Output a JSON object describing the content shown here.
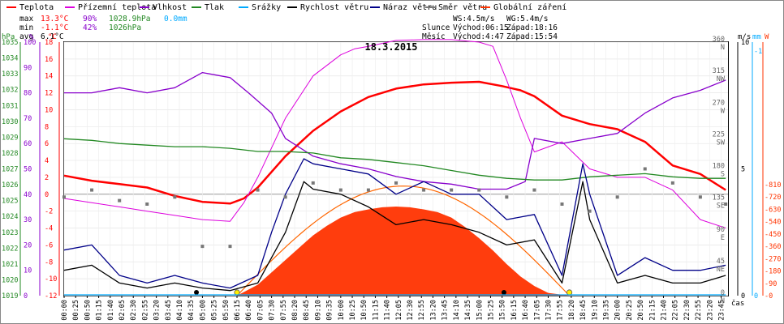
{
  "chart_data": {
    "type": "line",
    "title": "18.3.2015",
    "legend": [
      "Teplota",
      "Přízemní teplota",
      "Vlhkost",
      "Tlak",
      "Srážky",
      "Rychlost větru",
      "Náraz větru",
      "Směr větru",
      "Globální záření"
    ],
    "colors": {
      "Teplota": "#ff0000",
      "Přízemní teplota": "#dd00dd",
      "Vlhkost": "#8800cc",
      "Tlak": "#228822",
      "Srážky": "#00aaff",
      "Rychlost větru": "#000000",
      "Náraz větru": "#000088",
      "Směr větru": "#777777",
      "Globální záření": "#ff3300"
    },
    "stats": {
      "max": {
        "label": "max",
        "temp": "13.3°C",
        "hum": "90%",
        "press": "1028.9hPa",
        "rain": "0.0mm"
      },
      "min": {
        "label": "min",
        "temp": "-1.1°C",
        "hum": "42%",
        "press": "1026hPa"
      },
      "avg": {
        "label": "avg",
        "temp": "6.1°C"
      }
    },
    "info": {
      "ws": "WS:4.5m/s",
      "wg": "WG:5.4m/s",
      "sun_label": "Slunce",
      "sunrise": "Východ:06:15",
      "sunset": "Západ:18:16",
      "moon_label": "Měsíc",
      "moonrise": "Východ:4:47",
      "moonset": "Západ:15:54"
    },
    "axes": {
      "hpa": {
        "label": "hPa",
        "range": [
          1019,
          1035
        ],
        "ticks": [
          "1035",
          "1034",
          "1033",
          "1032",
          "1031",
          "1030",
          "1029",
          "1028",
          "1027",
          "1026",
          "1025",
          "1024",
          "1023",
          "1022",
          "1021",
          "1020",
          "1019"
        ]
      },
      "pct": {
        "label": "%",
        "range": [
          0,
          100
        ],
        "ticks": [
          "100",
          "90",
          "80",
          "70",
          "60",
          "50",
          "40",
          "30",
          "20",
          "10",
          "0"
        ]
      },
      "temp": {
        "label": "°C",
        "range": [
          -12,
          18
        ],
        "ticks": [
          "18",
          "16",
          "14",
          "12",
          "10",
          "8",
          "6",
          "4",
          "2",
          "0",
          "-2",
          "-4",
          "-6",
          "-8",
          "-10",
          "-12"
        ]
      },
      "wind": {
        "label": "m/s",
        "range": [
          0,
          10
        ],
        "ticks": [
          "10",
          "5",
          "0"
        ]
      },
      "mm": {
        "label": "mm",
        "ticks": [
          "1",
          "0"
        ]
      },
      "dir": {
        "range": [
          0,
          360
        ],
        "ticks": [
          "360",
          "315",
          "270",
          "225",
          "180",
          "135",
          "90",
          "45",
          "0"
        ],
        "names": [
          "N",
          "NW",
          "W",
          "SW",
          "S",
          "SE",
          "E",
          "NE",
          "N"
        ]
      },
      "rad": {
        "label": "W",
        "range": [
          0,
          810
        ],
        "ticks": [
          "810",
          "720",
          "630",
          "540",
          "450",
          "360",
          "270",
          "180",
          "90",
          "0"
        ]
      },
      "x_label": "čas",
      "x_ticks": [
        "00:00",
        "00:25",
        "00:50",
        "01:15",
        "01:40",
        "02:05",
        "02:30",
        "02:55",
        "03:20",
        "03:45",
        "04:10",
        "04:35",
        "05:00",
        "05:25",
        "05:50",
        "06:15",
        "06:40",
        "07:05",
        "07:30",
        "07:55",
        "08:20",
        "08:45",
        "09:10",
        "09:35",
        "10:00",
        "10:25",
        "10:50",
        "11:15",
        "11:40",
        "12:05",
        "12:30",
        "12:55",
        "13:20",
        "13:45",
        "14:10",
        "14:35",
        "15:00",
        "15:25",
        "15:50",
        "16:15",
        "16:40",
        "17:05",
        "17:30",
        "17:55",
        "18:20",
        "18:45",
        "19:10",
        "19:35",
        "20:00",
        "20:25",
        "20:50",
        "21:15",
        "21:40",
        "22:05",
        "22:30",
        "22:55",
        "23:20",
        "23:45"
      ]
    },
    "series": [
      {
        "name": "Teplota",
        "unit": "°C",
        "x": [
          "00:00",
          "01:00",
          "02:00",
          "03:00",
          "04:00",
          "05:00",
          "06:00",
          "06:30",
          "07:00",
          "08:00",
          "09:00",
          "10:00",
          "11:00",
          "12:00",
          "13:00",
          "14:00",
          "15:00",
          "15:50",
          "16:30",
          "17:00",
          "18:00",
          "19:00",
          "20:00",
          "21:00",
          "22:00",
          "23:00",
          "23:55"
        ],
        "y": [
          2.2,
          1.6,
          1.2,
          0.8,
          -0.2,
          -0.9,
          -1.1,
          -0.5,
          0.8,
          4.5,
          7.5,
          9.8,
          11.5,
          12.5,
          13.0,
          13.2,
          13.3,
          12.8,
          12.3,
          11.6,
          9.3,
          8.3,
          7.7,
          6.2,
          3.4,
          2.4,
          0.5
        ]
      },
      {
        "name": "Přízemní teplota",
        "unit": "°C",
        "x": [
          "00:00",
          "01:00",
          "02:00",
          "03:00",
          "04:00",
          "05:00",
          "06:00",
          "06:30",
          "07:00",
          "08:00",
          "09:00",
          "10:00",
          "10:30",
          "11:00",
          "12:00",
          "13:00",
          "14:00",
          "15:00",
          "15:30",
          "16:00",
          "16:30",
          "17:00",
          "18:00",
          "19:00",
          "20:00",
          "21:00",
          "22:00",
          "23:00",
          "23:55"
        ],
        "y": [
          -0.5,
          -1.0,
          -1.5,
          -2.0,
          -2.5,
          -3.0,
          -3.2,
          -1.0,
          2.0,
          9.0,
          14.0,
          16.5,
          17.2,
          17.5,
          18.2,
          18.3,
          18.3,
          18.0,
          17.5,
          13.5,
          9.0,
          5.0,
          6.2,
          3.0,
          2.0,
          2.0,
          0.5,
          -3.0,
          -4.0
        ]
      },
      {
        "name": "Vlhkost",
        "unit": "%",
        "x": [
          "00:00",
          "01:00",
          "02:00",
          "03:00",
          "04:00",
          "05:00",
          "06:00",
          "06:40",
          "07:30",
          "08:00",
          "09:00",
          "10:00",
          "11:00",
          "12:00",
          "13:00",
          "14:00",
          "15:00",
          "16:00",
          "16:40",
          "17:00",
          "18:00",
          "19:00",
          "20:00",
          "21:00",
          "22:00",
          "23:00",
          "23:55"
        ],
        "y": [
          80,
          80,
          82,
          80,
          82,
          88,
          86,
          80,
          72,
          62,
          55,
          52,
          50,
          47,
          45,
          44,
          42,
          42,
          45,
          62,
          60,
          62,
          64,
          72,
          78,
          81,
          85
        ]
      },
      {
        "name": "Tlak",
        "unit": "hPa",
        "x": [
          "00:00",
          "01:00",
          "02:00",
          "03:00",
          "04:00",
          "05:00",
          "06:00",
          "07:00",
          "08:00",
          "09:00",
          "10:00",
          "11:00",
          "12:00",
          "13:00",
          "14:00",
          "15:00",
          "16:00",
          "17:00",
          "18:00",
          "19:00",
          "20:00",
          "21:00",
          "22:00",
          "23:00",
          "23:55"
        ],
        "y": [
          1028.9,
          1028.8,
          1028.6,
          1028.5,
          1028.4,
          1028.4,
          1028.3,
          1028.1,
          1028.1,
          1028.0,
          1027.7,
          1027.6,
          1027.4,
          1027.2,
          1026.9,
          1026.6,
          1026.4,
          1026.3,
          1026.3,
          1026.5,
          1026.6,
          1026.7,
          1026.5,
          1026.4,
          1026.4
        ]
      },
      {
        "name": "Srážky",
        "unit": "mm",
        "x": [
          "00:00",
          "23:55"
        ],
        "y": [
          0,
          0
        ]
      },
      {
        "name": "Rychlost větru",
        "unit": "m/s",
        "x": [
          "00:00",
          "01:00",
          "02:00",
          "03:00",
          "04:00",
          "05:00",
          "06:00",
          "07:00",
          "07:30",
          "08:00",
          "08:40",
          "09:00",
          "10:00",
          "11:00",
          "12:00",
          "13:00",
          "14:00",
          "15:00",
          "16:00",
          "17:00",
          "18:00",
          "18:45",
          "19:00",
          "20:00",
          "21:00",
          "22:00",
          "23:00",
          "23:55"
        ],
        "y": [
          1.0,
          1.2,
          0.5,
          0.3,
          0.5,
          0.3,
          0.2,
          0.5,
          1.5,
          2.5,
          4.5,
          4.2,
          4.0,
          3.5,
          2.8,
          3.0,
          2.8,
          2.5,
          2.0,
          2.2,
          0.5,
          4.5,
          3.0,
          0.5,
          0.8,
          0.5,
          0.5,
          0.8
        ]
      },
      {
        "name": "Náraz větru",
        "unit": "m/s",
        "x": [
          "00:00",
          "01:00",
          "02:00",
          "03:00",
          "04:00",
          "05:00",
          "06:00",
          "07:00",
          "07:30",
          "08:00",
          "08:40",
          "09:00",
          "10:00",
          "11:00",
          "12:00",
          "13:00",
          "14:00",
          "15:00",
          "16:00",
          "17:00",
          "18:00",
          "18:45",
          "19:00",
          "20:00",
          "21:00",
          "22:00",
          "23:00",
          "23:55"
        ],
        "y": [
          1.8,
          2.0,
          0.8,
          0.5,
          0.8,
          0.5,
          0.3,
          0.8,
          2.5,
          4.0,
          5.4,
          5.2,
          5.0,
          4.8,
          4.0,
          4.5,
          4.0,
          4.0,
          3.0,
          3.2,
          0.8,
          5.2,
          4.0,
          0.8,
          1.5,
          1.0,
          1.0,
          1.2
        ]
      },
      {
        "name": "Směr větru",
        "unit": "°",
        "x": [
          "00:00",
          "01:00",
          "02:00",
          "03:00",
          "04:00",
          "05:00",
          "06:00",
          "07:00",
          "08:00",
          "09:00",
          "10:00",
          "11:00",
          "12:00",
          "13:00",
          "14:00",
          "15:00",
          "16:00",
          "17:00",
          "18:00",
          "19:00",
          "20:00",
          "21:00",
          "22:00",
          "23:00",
          "23:55"
        ],
        "y": [
          140,
          150,
          135,
          130,
          140,
          70,
          70,
          150,
          140,
          160,
          150,
          150,
          160,
          150,
          150,
          150,
          140,
          150,
          130,
          120,
          140,
          180,
          160,
          140,
          130
        ]
      },
      {
        "name": "Globální záření",
        "unit": "W",
        "x": [
          "06:15",
          "07:00",
          "07:30",
          "08:00",
          "08:30",
          "09:00",
          "09:30",
          "10:00",
          "10:30",
          "11:00",
          "11:30",
          "12:00",
          "12:30",
          "13:00",
          "13:30",
          "14:00",
          "14:30",
          "15:00",
          "15:30",
          "16:00",
          "16:30",
          "17:00",
          "17:30",
          "18:16"
        ],
        "y": [
          0,
          80,
          170,
          260,
          350,
          440,
          510,
          570,
          610,
          630,
          645,
          650,
          645,
          630,
          610,
          570,
          500,
          420,
          330,
          230,
          140,
          70,
          20,
          0
        ]
      }
    ]
  }
}
